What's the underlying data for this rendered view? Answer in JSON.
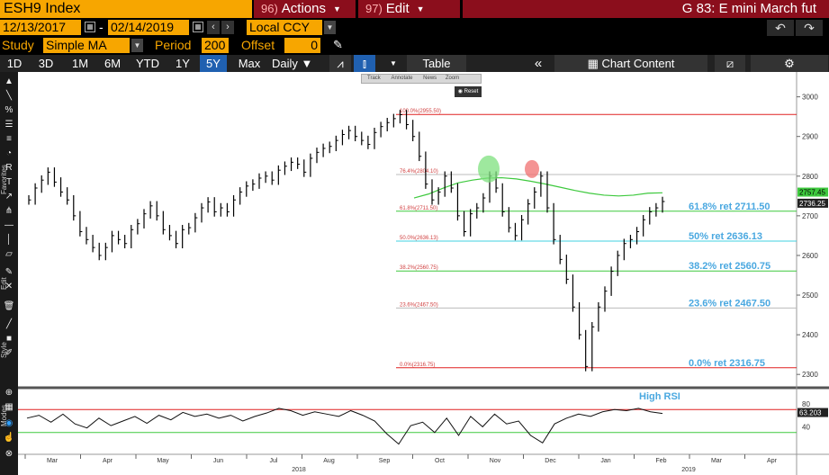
{
  "header": {
    "ticker": "ESH9 Index",
    "actions_num": "96)",
    "actions_label": "Actions",
    "edit_num": "97)",
    "edit_label": "Edit",
    "title": "G 83: E mini March fut"
  },
  "range": {
    "start_date": "12/13/2017",
    "end_date": "02/14/2019",
    "currency": "Local CCY"
  },
  "study": {
    "label": "Study",
    "value": "Simple MA",
    "period_label": "Period",
    "period_value": "200",
    "offset_label": "Offset",
    "offset_value": "0"
  },
  "toolbar": {
    "periods": [
      "1D",
      "3D",
      "1M",
      "6M",
      "YTD",
      "1Y",
      "5Y",
      "Max"
    ],
    "active_period": "5Y",
    "frequency": "Daily",
    "table_label": "Table",
    "chart_content_label": "Chart Content"
  },
  "float_tools": {
    "labels": [
      "Track",
      "Annotate",
      "News",
      "Zoom"
    ],
    "reset_label": "Reset"
  },
  "left_tools": {
    "labels": [
      "Favorites",
      "Edit",
      "Style",
      "Modes"
    ]
  },
  "colors": {
    "bloomberg_orange": "#f7a600",
    "menu_red": "#8b0e1c",
    "fib_red": "#e02020",
    "fib_green": "#3ec93e",
    "fib_cyan": "#40d0e0",
    "fib_label_blue": "#4aa8e0"
  },
  "chart_data": {
    "type": "line",
    "price_axis": {
      "ticks": [
        2300,
        2400,
        2500,
        2600,
        2700,
        2800,
        2900,
        3000
      ],
      "range": [
        2280,
        3040
      ]
    },
    "rsi_axis": {
      "ticks": [
        40,
        80
      ],
      "range": [
        0,
        100
      ],
      "level_high": 70,
      "level_low": 30
    },
    "x_months": [
      "Mar",
      "Apr",
      "May",
      "Jun",
      "Jul",
      "Aug",
      "Sep",
      "Oct",
      "Nov",
      "Dec",
      "Jan",
      "Feb",
      "Mar",
      "Apr"
    ],
    "x_years": [
      "2018",
      "2019"
    ],
    "last_price": "2736.25",
    "ma_value": "2757.45",
    "rsi_last": "63.203",
    "rsi_annotation": "High RSI",
    "fib_levels": [
      {
        "ratio": "100.0%",
        "value": 2955.5,
        "small": "100.0%(2955.50)",
        "label": ""
      },
      {
        "ratio": "76.4%",
        "value": 2804.1,
        "small": "76.4%(2804.10)",
        "label": ""
      },
      {
        "ratio": "61.8%",
        "value": 2711.5,
        "small": "61.8%(2711.50)",
        "label": "61.8% ret 2711.50"
      },
      {
        "ratio": "50.0%",
        "value": 2636.13,
        "small": "50.0%(2636.13)",
        "label": "50% ret 2636.13"
      },
      {
        "ratio": "38.2%",
        "value": 2560.75,
        "small": "38.2%(2560.75)",
        "label": "38.2% ret 2560.75"
      },
      {
        "ratio": "23.6%",
        "value": 2467.5,
        "small": "23.6%(2467.50)",
        "label": "23.6% ret 2467.50"
      },
      {
        "ratio": "0.0%",
        "value": 2316.75,
        "small": "0.0%(2316.75)",
        "label": "0.0% ret 2316.75"
      }
    ],
    "price_series": [
      2740,
      2770,
      2790,
      2810,
      2785,
      2760,
      2740,
      2700,
      2660,
      2640,
      2620,
      2600,
      2620,
      2650,
      2640,
      2630,
      2665,
      2680,
      2705,
      2725,
      2700,
      2665,
      2650,
      2630,
      2665,
      2670,
      2695,
      2720,
      2735,
      2710,
      2720,
      2710,
      2740,
      2760,
      2775,
      2780,
      2795,
      2800,
      2790,
      2815,
      2825,
      2835,
      2830,
      2810,
      2845,
      2860,
      2870,
      2875,
      2890,
      2905,
      2915,
      2900,
      2890,
      2880,
      2910,
      2925,
      2935,
      2945,
      2955,
      2930,
      2900,
      2850,
      2780,
      2740,
      2760,
      2800,
      2770,
      2700,
      2660,
      2705,
      2720,
      2745,
      2800,
      2770,
      2710,
      2670,
      2650,
      2690,
      2730,
      2760,
      2800,
      2720,
      2640,
      2590,
      2540,
      2470,
      2400,
      2320,
      2420,
      2470,
      2510,
      2560,
      2600,
      2630,
      2640,
      2660,
      2690,
      2710,
      2720,
      2736
    ],
    "ma_series": [
      2745,
      2755,
      2770,
      2783,
      2790,
      2795,
      2796,
      2793,
      2787,
      2780,
      2772,
      2764,
      2757,
      2752,
      2750,
      2752,
      2757,
      2758
    ],
    "rsi_series": [
      55,
      60,
      48,
      62,
      45,
      38,
      55,
      42,
      50,
      58,
      46,
      60,
      52,
      65,
      58,
      62,
      55,
      60,
      50,
      58,
      64,
      72,
      68,
      60,
      66,
      62,
      58,
      68,
      60,
      50,
      28,
      10,
      42,
      48,
      30,
      55,
      25,
      58,
      40,
      62,
      45,
      50,
      25,
      12,
      45,
      55,
      62,
      58,
      66,
      70,
      68,
      72,
      66,
      63
    ]
  }
}
